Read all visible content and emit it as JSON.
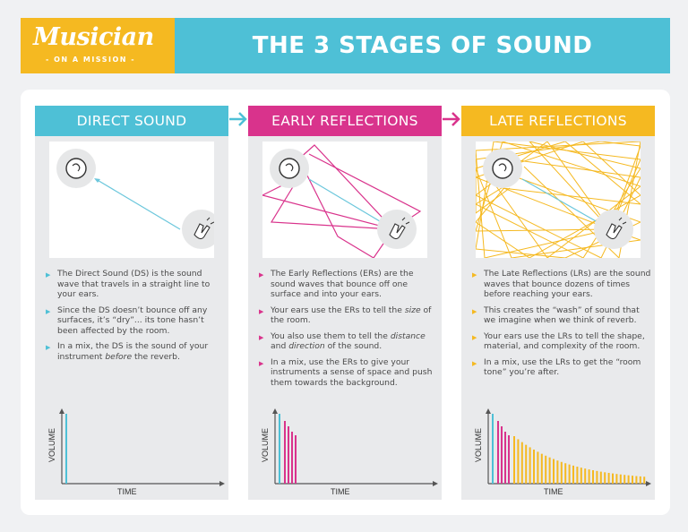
{
  "header": {
    "logo_main": "Musician",
    "logo_sub": "- ON A MISSION -",
    "title": "THE 3 STAGES OF SOUND"
  },
  "colors": {
    "teal": "#4ec0d6",
    "magenta": "#d9338c",
    "yellow": "#f5b921"
  },
  "icons": {
    "listener": "ear-icon",
    "source": "clapping-hands-icon",
    "connector": "arrow-right-icon"
  },
  "columns": [
    {
      "title": "DIRECT SOUND",
      "bullets": [
        [
          "The Direct Sound (DS) is the sound wave that travels in a straight line to your ears."
        ],
        [
          "Since the DS doesn’t bounce off any surfaces, it’s “dry”... its tone hasn’t been affected by the room."
        ],
        [
          "In a mix, the DS is the sound of your instrument ",
          "before",
          " the reverb."
        ]
      ],
      "graph": {
        "ylabel": "VOLUME",
        "xlabel": "TIME"
      }
    },
    {
      "title": "EARLY REFLECTIONS",
      "bullets": [
        [
          "The Early Reflections (ERs) are the sound waves that bounce off one surface and into your ears."
        ],
        [
          "Your ears use the ERs to tell the ",
          "size",
          " of the room."
        ],
        [
          "You also use them to tell the ",
          "distance",
          " and ",
          "direction",
          " of the sound."
        ],
        [
          "In a mix, use the ERs to give your instruments a sense of space and push them towards the background."
        ]
      ],
      "graph": {
        "ylabel": "VOLUME",
        "xlabel": "TIME"
      }
    },
    {
      "title": "LATE REFLECTIONS",
      "bullets": [
        [
          "The Late Reflections (LRs) are the sound waves that bounce dozens of times before reaching your ears."
        ],
        [
          "This creates the “wash” of sound that we imagine when we think of reverb."
        ],
        [
          "Your ears use the LRs to tell the shape, material, and complexity of the room."
        ],
        [
          "In a mix, use the LRs to get the “room tone” you’re after."
        ]
      ],
      "graph": {
        "ylabel": "VOLUME",
        "xlabel": "TIME"
      }
    }
  ]
}
